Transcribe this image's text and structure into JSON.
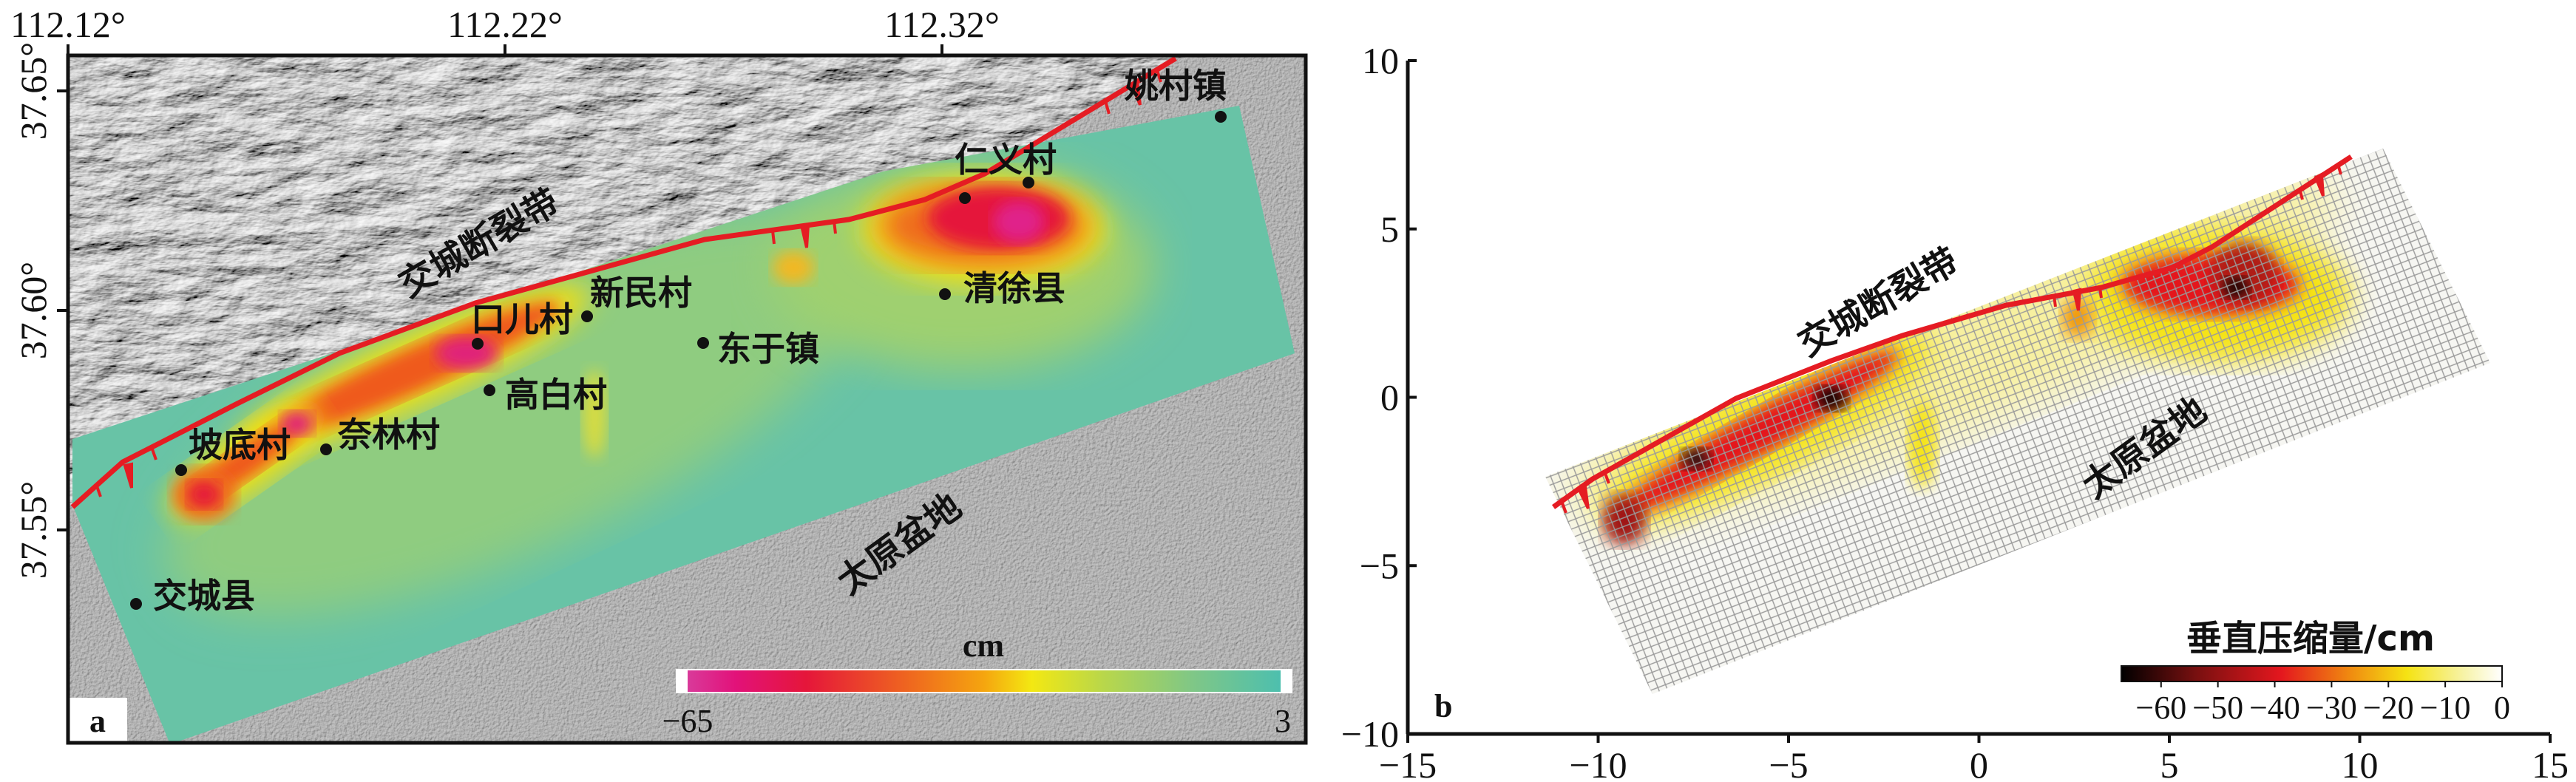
{
  "panel_a": {
    "label": "a",
    "fault_label": "交城断裂带",
    "basin_label": "太原盆地",
    "places": [
      {
        "id": "yaocun",
        "name": "姚村镇"
      },
      {
        "id": "renyi",
        "name": "仁义村"
      },
      {
        "id": "qingxu",
        "name": "清徐县"
      },
      {
        "id": "xinmin",
        "name": "新民村"
      },
      {
        "id": "kouer",
        "name": "口儿村"
      },
      {
        "id": "dongyu",
        "name": "东于镇"
      },
      {
        "id": "gaobai",
        "name": "高白村"
      },
      {
        "id": "nailin",
        "name": "奈林村"
      },
      {
        "id": "podi",
        "name": "坡底村"
      },
      {
        "id": "jiaocheng",
        "name": "交城县"
      }
    ],
    "colorbar": {
      "unit": "cm",
      "min_label": "−65",
      "max_label": "3",
      "min": -65,
      "max": 3,
      "colors": [
        "#d93a9a",
        "#e2127a",
        "#e5163a",
        "#ef6a1e",
        "#f5a50f",
        "#f3e812",
        "#b9d74a",
        "#80c786",
        "#4dbfae"
      ]
    }
  },
  "panel_b": {
    "label": "b",
    "fault_label": "交城断裂带",
    "basin_label": "太原盆地",
    "colorbar": {
      "title": "垂直压缩量/cm",
      "min": -67,
      "max": 0,
      "ticks": [
        {
          "v": -60,
          "t": "−60"
        },
        {
          "v": -50,
          "t": "−50"
        },
        {
          "v": -40,
          "t": "−40"
        },
        {
          "v": -30,
          "t": "−30"
        },
        {
          "v": -20,
          "t": "−20"
        },
        {
          "v": -10,
          "t": "−10"
        },
        {
          "v": 0,
          "t": "0"
        }
      ],
      "colors": [
        "#000000",
        "#7a1010",
        "#e4171e",
        "#f08a10",
        "#f5e313",
        "#f7f3a8",
        "#ffffff"
      ]
    }
  },
  "chart_data": [
    {
      "type": "heatmap",
      "panel": "a",
      "title": "",
      "x_axis": {
        "label": "longitude",
        "ticks": [
          {
            "v": 112.12,
            "t": "112.12°"
          },
          {
            "v": 112.22,
            "t": "112.22°"
          },
          {
            "v": 112.32,
            "t": "112.32°"
          }
        ]
      },
      "y_axis": {
        "label": "latitude",
        "ticks": [
          {
            "v": 37.65,
            "t": "37.65°"
          },
          {
            "v": 37.6,
            "t": "37.60°"
          },
          {
            "v": 37.55,
            "t": "37.55°"
          }
        ]
      },
      "value_range": [
        -65,
        3
      ],
      "unit": "cm"
    },
    {
      "type": "heatmap",
      "panel": "b",
      "title": "",
      "x_axis": {
        "range": [
          -15,
          15
        ],
        "ticks": [
          {
            "v": -15,
            "t": "−15"
          },
          {
            "v": -10,
            "t": "−10"
          },
          {
            "v": -5,
            "t": "−5"
          },
          {
            "v": 0,
            "t": "0"
          },
          {
            "v": 5,
            "t": "5"
          },
          {
            "v": 10,
            "t": "10"
          },
          {
            "v": 15,
            "t": "15"
          }
        ]
      },
      "y_axis": {
        "range": [
          -10,
          10
        ],
        "ticks": [
          {
            "v": 10,
            "t": "10"
          },
          {
            "v": 5,
            "t": "5"
          },
          {
            "v": 0,
            "t": "0"
          },
          {
            "v": -5,
            "t": "−5"
          },
          {
            "v": -10,
            "t": "−10"
          }
        ]
      },
      "value_range": [
        -67,
        0
      ],
      "unit": "cm"
    }
  ]
}
